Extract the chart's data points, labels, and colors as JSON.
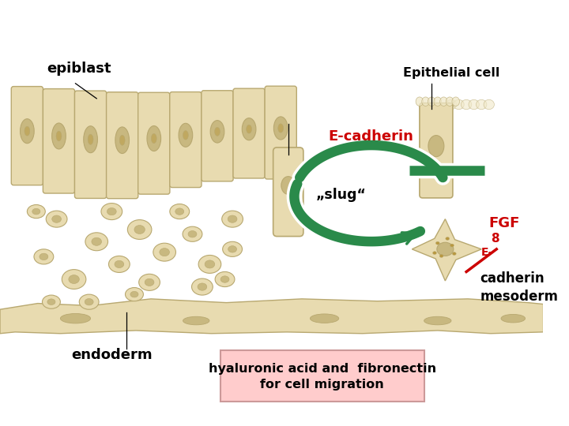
{
  "bg_color": "#ffffff",
  "cell_fill": "#e8dbb0",
  "cell_edge": "#b8a870",
  "cell_dark": "#c8b880",
  "green_arrow": "#2a8a4a",
  "red_color": "#cc0000",
  "pink_box": "#ffcccc",
  "pink_box_edge": "#cc9999",
  "text_black": "#000000",
  "labels": {
    "epiblast": "epiblast",
    "epithelial": "Epithelial cell",
    "ecadherin": "E-cadherin",
    "slug": "„slug“",
    "endoderm": "endoderm",
    "box_text": "hyaluronic acid and  fibronectin\nfor cell migration"
  }
}
